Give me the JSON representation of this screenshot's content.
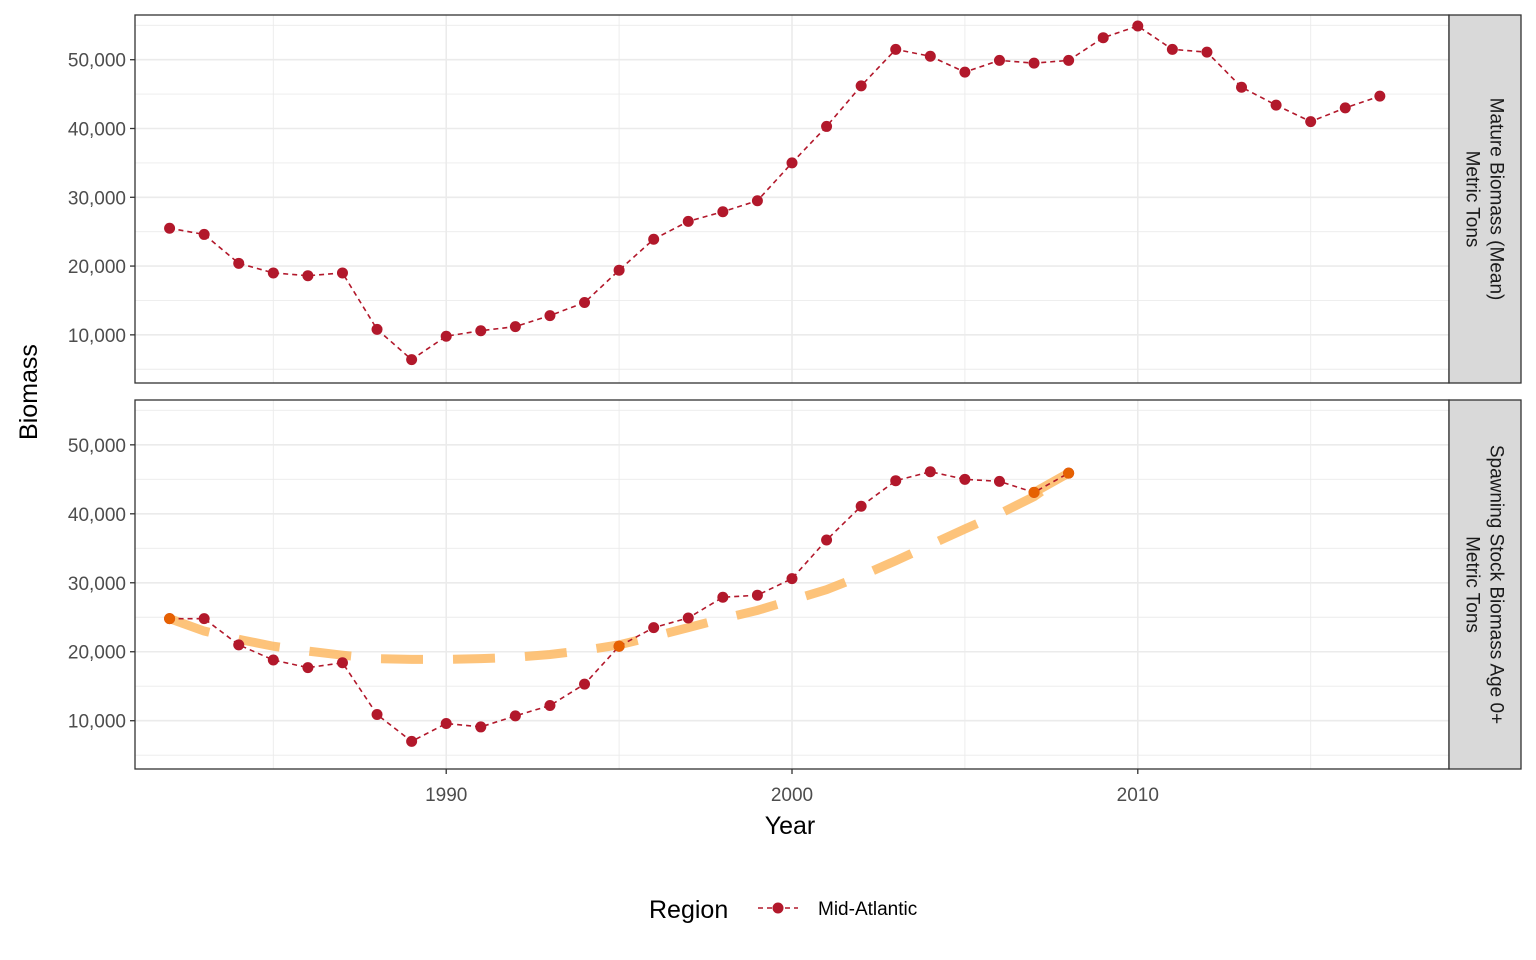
{
  "chart_data": {
    "type": "line",
    "xlabel": "Year",
    "ylabel": "Biomass",
    "xlim": [
      1981,
      2019
    ],
    "ylim": [
      3000,
      56500
    ],
    "x_ticks": [
      1990,
      2000,
      2010
    ],
    "y_ticks": [
      10000,
      20000,
      30000,
      40000,
      50000
    ],
    "grid": true,
    "legend": {
      "title": "Region",
      "position": "bottom",
      "entries": [
        "Mid-Atlantic"
      ]
    },
    "colors": {
      "series": "#b2182b",
      "trend": "#fdb863",
      "highlight": "#e66101",
      "strip_bg": "#d9d9d9",
      "grid": "#ebebeb",
      "panel_border": "#333333"
    },
    "panels": [
      {
        "strip": [
          "Mature Biomass (Mean)",
          "Metric Tons"
        ],
        "series": [
          {
            "name": "Mid-Atlantic",
            "x": [
              1982,
              1983,
              1984,
              1985,
              1986,
              1987,
              1988,
              1989,
              1990,
              1991,
              1992,
              1993,
              1994,
              1995,
              1996,
              1997,
              1998,
              1999,
              2000,
              2001,
              2002,
              2003,
              2004,
              2005,
              2006,
              2007,
              2008,
              2009,
              2010,
              2011,
              2012,
              2013,
              2014,
              2015,
              2016,
              2017
            ],
            "y": [
              25500,
              24600,
              20400,
              19000,
              18600,
              19000,
              10800,
              6400,
              9800,
              10600,
              11200,
              12800,
              14700,
              19400,
              23900,
              26500,
              27900,
              29500,
              35000,
              40300,
              46200,
              51500,
              50500,
              48200,
              49900,
              49500,
              49900,
              53200,
              54900,
              51500,
              51100,
              46000,
              43400,
              41000,
              43000,
              44700
            ]
          }
        ],
        "trend": null,
        "highlight_points": []
      },
      {
        "strip": [
          "Spawning Stock Biomass Age 0+",
          "Metric Tons"
        ],
        "series": [
          {
            "name": "Mid-Atlantic",
            "x": [
              1982,
              1983,
              1984,
              1985,
              1986,
              1987,
              1988,
              1989,
              1990,
              1991,
              1992,
              1993,
              1994,
              1995,
              1996,
              1997,
              1998,
              1999,
              2000,
              2001,
              2002,
              2003,
              2004,
              2005,
              2006,
              2007,
              2008
            ],
            "y": [
              24800,
              24800,
              21000,
              18800,
              17700,
              18400,
              10900,
              7000,
              9600,
              9100,
              10700,
              12200,
              15300,
              20800,
              23500,
              24900,
              27900,
              28200,
              30600,
              36200,
              41100,
              44800,
              46100,
              45000,
              44700,
              43100,
              45900
            ]
          }
        ],
        "trend": {
          "x": [
            1982,
            1983,
            1984,
            1985,
            1986,
            1987,
            1988,
            1989,
            1990,
            1991,
            1992,
            1993,
            1994,
            1995,
            1996,
            1997,
            1998,
            1999,
            2000,
            2001,
            2002,
            2003,
            2004,
            2005,
            2006,
            2007,
            2008
          ],
          "y": [
            24800,
            23000,
            21800,
            20800,
            20100,
            19500,
            19000,
            18900,
            18900,
            19000,
            19200,
            19600,
            20200,
            21000,
            22200,
            23500,
            24800,
            26000,
            27500,
            29000,
            31000,
            33200,
            35500,
            37800,
            40000,
            42500,
            46000
          ]
        },
        "trend_segment_emphasis": {
          "x": [
            2007,
            2008
          ],
          "y": [
            43100,
            45900
          ]
        },
        "highlight_points": [
          {
            "x": 1982,
            "y": 24800
          },
          {
            "x": 1995,
            "y": 20800
          },
          {
            "x": 2007,
            "y": 43100
          },
          {
            "x": 2008,
            "y": 45900
          }
        ]
      }
    ]
  }
}
